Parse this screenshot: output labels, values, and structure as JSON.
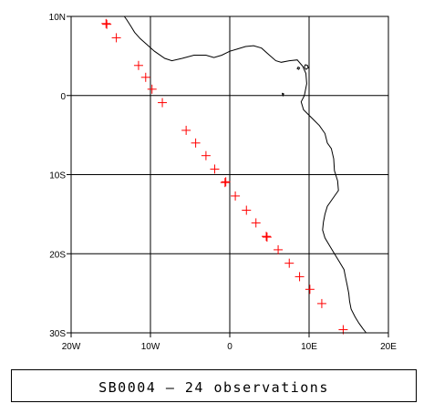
{
  "map": {
    "lon_range": [
      -20,
      20
    ],
    "lat_range": [
      -30,
      10
    ],
    "grid_lons": [
      -10,
      0,
      10
    ],
    "grid_lats": [
      -20,
      -10,
      0
    ],
    "x_ticks": [
      {
        "value": -20,
        "label": "20W"
      },
      {
        "value": -10,
        "label": "10W"
      },
      {
        "value": 0,
        "label": "0"
      },
      {
        "value": 10,
        "label": "10E"
      },
      {
        "value": 20,
        "label": "20E"
      }
    ],
    "y_ticks": [
      {
        "value": 10,
        "label": "10N"
      },
      {
        "value": 0,
        "label": "0"
      },
      {
        "value": -10,
        "label": "10S"
      },
      {
        "value": -20,
        "label": "20S"
      },
      {
        "value": -30,
        "label": "30S"
      }
    ],
    "marker_color": "#ff0000",
    "line_color": "#000000",
    "coastline": [
      [
        -13.3,
        10.0
      ],
      [
        -13.0,
        9.6
      ],
      [
        -12.5,
        8.8
      ],
      [
        -12.0,
        8.0
      ],
      [
        -11.3,
        7.2
      ],
      [
        -10.5,
        6.5
      ],
      [
        -9.5,
        5.6
      ],
      [
        -8.2,
        4.7
      ],
      [
        -7.3,
        4.4
      ],
      [
        -6.0,
        4.7
      ],
      [
        -4.5,
        5.1
      ],
      [
        -3.0,
        5.1
      ],
      [
        -2.0,
        4.8
      ],
      [
        -1.0,
        5.1
      ],
      [
        0.0,
        5.6
      ],
      [
        1.0,
        5.9
      ],
      [
        2.0,
        6.2
      ],
      [
        3.0,
        6.3
      ],
      [
        4.0,
        6.0
      ],
      [
        5.0,
        5.1
      ],
      [
        5.8,
        4.4
      ],
      [
        6.5,
        4.2
      ],
      [
        7.5,
        4.4
      ],
      [
        8.5,
        4.5
      ],
      [
        9.2,
        3.7
      ],
      [
        9.6,
        2.8
      ],
      [
        9.7,
        1.5
      ],
      [
        9.5,
        0.5
      ],
      [
        9.4,
        0.0
      ],
      [
        9.0,
        -0.8
      ],
      [
        9.3,
        -1.8
      ],
      [
        10.3,
        -2.8
      ],
      [
        11.3,
        -3.8
      ],
      [
        12.0,
        -4.8
      ],
      [
        12.3,
        -6.0
      ],
      [
        12.8,
        -6.7
      ],
      [
        13.1,
        -8.0
      ],
      [
        13.2,
        -9.5
      ],
      [
        13.6,
        -10.8
      ],
      [
        13.7,
        -12.0
      ],
      [
        13.0,
        -13.0
      ],
      [
        12.3,
        -14.0
      ],
      [
        12.0,
        -15.0
      ],
      [
        11.8,
        -16.0
      ],
      [
        11.7,
        -17.0
      ],
      [
        12.0,
        -18.0
      ],
      [
        12.6,
        -19.0
      ],
      [
        13.2,
        -20.0
      ],
      [
        13.8,
        -21.0
      ],
      [
        14.4,
        -22.0
      ],
      [
        14.6,
        -23.0
      ],
      [
        14.8,
        -24.0
      ],
      [
        15.0,
        -25.0
      ],
      [
        15.1,
        -26.0
      ],
      [
        15.3,
        -27.0
      ],
      [
        15.8,
        -28.0
      ],
      [
        16.3,
        -28.8
      ],
      [
        16.8,
        -29.5
      ],
      [
        17.2,
        -30.0
      ]
    ],
    "islands": [
      [
        [
          9.5,
          3.9
        ],
        [
          9.8,
          3.8
        ],
        [
          9.9,
          3.5
        ],
        [
          9.6,
          3.3
        ],
        [
          9.4,
          3.6
        ],
        [
          9.5,
          3.9
        ]
      ],
      [
        [
          8.6,
          3.6
        ],
        [
          8.8,
          3.5
        ],
        [
          8.7,
          3.3
        ],
        [
          8.5,
          3.4
        ],
        [
          8.6,
          3.6
        ]
      ],
      [
        [
          6.6,
          0.3
        ],
        [
          6.8,
          0.2
        ],
        [
          6.7,
          0.0
        ],
        [
          6.6,
          0.3
        ]
      ]
    ],
    "observations": [
      [
        -15.5,
        9.0
      ],
      [
        -14.3,
        7.3
      ],
      [
        -11.5,
        3.8
      ],
      [
        -10.6,
        2.3
      ],
      [
        -9.8,
        0.8
      ],
      [
        -8.5,
        -0.9
      ],
      [
        -5.5,
        -4.4
      ],
      [
        -4.3,
        -6.0
      ],
      [
        -3.0,
        -7.6
      ],
      [
        -1.9,
        -9.3
      ],
      [
        -0.6,
        -11.0
      ],
      [
        0.7,
        -12.7
      ],
      [
        2.1,
        -14.5
      ],
      [
        3.3,
        -16.1
      ],
      [
        4.7,
        -17.9
      ],
      [
        6.1,
        -19.5
      ],
      [
        7.5,
        -21.2
      ],
      [
        8.8,
        -22.9
      ],
      [
        10.1,
        -24.5
      ],
      [
        11.6,
        -26.3
      ],
      [
        14.3,
        -29.6
      ],
      [
        -15.6,
        9.1
      ],
      [
        -0.5,
        -10.9
      ],
      [
        4.6,
        -17.8
      ]
    ]
  },
  "caption": "SB0004 – 24 observations"
}
